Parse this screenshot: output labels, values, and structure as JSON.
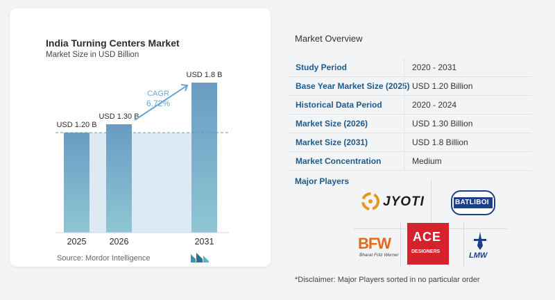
{
  "chart": {
    "title": "India Turning Centers Market",
    "subtitle": "Market Size in USD Billion",
    "source": "Source:  Mordor Intelligence",
    "cagr_label": "CAGR",
    "cagr_value": "6.72%"
  },
  "chart_data": {
    "type": "bar",
    "title": "India Turning Centers Market",
    "subtitle": "Market Size in USD Billion",
    "categories": [
      "2025",
      "2026",
      "2031"
    ],
    "values": [
      1.2,
      1.3,
      1.8
    ],
    "data_labels": [
      "USD 1.20 B",
      "USD 1.30 B",
      "USD 1.8 B"
    ],
    "ylim": [
      0,
      2.0
    ],
    "grid": false,
    "annotation": {
      "label": "CAGR",
      "value": "6.72%",
      "from": "2026",
      "to": "2031"
    },
    "colors": {
      "bar": "#6b9dc4",
      "bar_fill_bottom": "#8cc4d3",
      "reference_line": "#5b9bc4",
      "shade": "#dde9f3"
    }
  },
  "overview": {
    "title": "Market Overview",
    "rows": [
      {
        "label": "Study Period",
        "value": "2020 - 2031"
      },
      {
        "label": "Base Year Market Size (2025)",
        "value": "USD 1.20 Billion"
      },
      {
        "label": "Historical Data Period",
        "value": "2020 - 2024"
      },
      {
        "label": "Market Size (2026)",
        "value": "USD 1.30 Billion"
      },
      {
        "label": "Market Size (2031)",
        "value": "USD 1.8 Billion"
      },
      {
        "label": "Market Concentration",
        "value": "Medium"
      }
    ]
  },
  "players": {
    "title": "Major Players",
    "logos": {
      "jyoti": "JYOTI",
      "batliboi": "BATLIBOI",
      "bfw": "BFW",
      "bfw_sub": "Bharat Fritz Werner",
      "ace": "ACE",
      "ace_sub": "DESIGNERS",
      "lmw": "LMW"
    }
  },
  "disclaimer": "*Disclaimer: Major Players sorted in no particular order",
  "colors": {
    "accent": "#1f5a8a",
    "card": "#ffffff",
    "background": "#f3f4f6"
  }
}
